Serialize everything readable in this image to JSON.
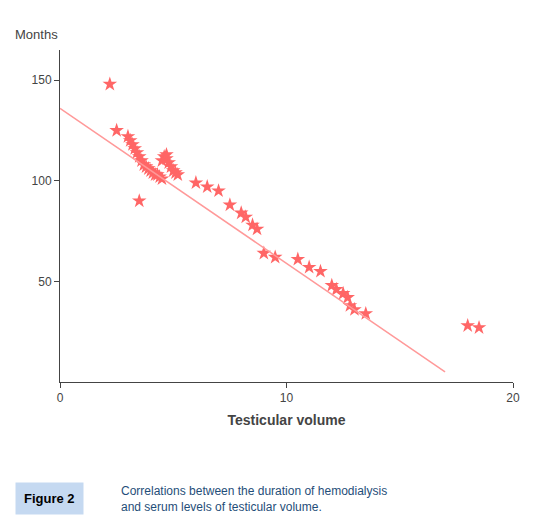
{
  "chart_data": {
    "type": "scatter",
    "xlabel": "Testicular volume",
    "ylabel": "Months",
    "xlim": [
      0,
      20
    ],
    "ylim": [
      0,
      165
    ],
    "xticks": [
      0,
      10,
      20
    ],
    "yticks": [
      50,
      100,
      150
    ],
    "grid": false,
    "series": [
      {
        "type": "scatter",
        "marker": "star",
        "color": "#FF6666",
        "x": [
          2.2,
          2.5,
          3.0,
          3.1,
          3.2,
          3.3,
          3.4,
          3.5,
          3.6,
          3.7,
          3.8,
          3.9,
          4.0,
          4.1,
          4.2,
          4.3,
          4.4,
          4.5,
          4.5,
          4.6,
          4.7,
          4.7,
          4.8,
          4.9,
          5.0,
          5.1,
          5.2,
          6.0,
          6.5,
          7.0,
          7.5,
          8.0,
          8.2,
          8.5,
          8.7,
          9.0,
          9.5,
          10.5,
          11.0,
          11.5,
          12.0,
          12.2,
          12.5,
          12.7,
          12.8,
          13.0,
          13.5,
          18.0,
          18.5
        ],
        "values": [
          148,
          125,
          122,
          120,
          118,
          116,
          114,
          112,
          110,
          108,
          107,
          106,
          105,
          104,
          103,
          103,
          102,
          101,
          110,
          112,
          111,
          113,
          109,
          107,
          105,
          104,
          103,
          99,
          97,
          95,
          88,
          84,
          82,
          78,
          76,
          64,
          62,
          61,
          57,
          55,
          48,
          46,
          44,
          42,
          38,
          36,
          34,
          28,
          27
        ]
      },
      {
        "type": "scatter",
        "marker": "star",
        "color": "#FF6666",
        "x": [
          3.5
        ],
        "values": [
          90
        ]
      },
      {
        "type": "line",
        "line_style": "solid",
        "color": "#FF9999",
        "x": [
          0,
          17
        ],
        "values": [
          136,
          5
        ]
      }
    ],
    "annotations": [
      {
        "text": "Figure 2",
        "color": "#000000"
      },
      {
        "text": "Correlations between the duration of hemodialysis\nand serum levels of testicular volume.",
        "color": "#1F4E79"
      }
    ]
  }
}
